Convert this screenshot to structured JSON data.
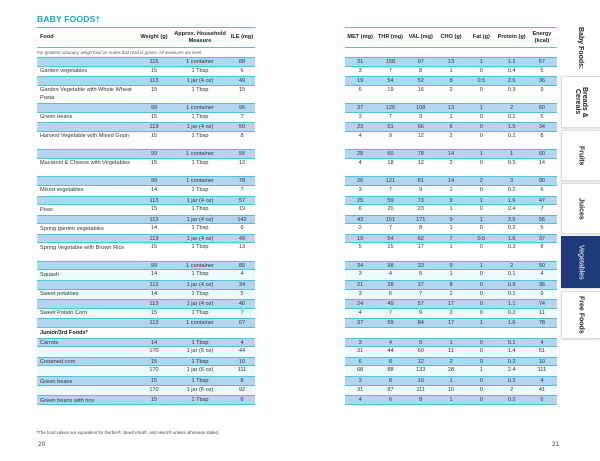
{
  "title": "BABY FOODS†",
  "note": "For greatest accuracy, weigh food on scales that read in grams. All measures are level.",
  "left_headers": [
    "Food",
    "Weight (g)",
    "Approx. Household Measure",
    "ILE (mg)"
  ],
  "right_headers": [
    "MET (mg)",
    "THR (mg)",
    "VAL (mg)",
    "CHO (g)",
    "Fat (g)",
    "Protein (g)",
    "Energy (kcal)"
  ],
  "rows": [
    [
      "",
      115,
      "1 container",
      88,
      31,
      158,
      97,
      13,
      1,
      1.1,
      57,
      "s"
    ],
    [
      "Garden vegetables",
      15,
      "1 Tbsp",
      6,
      3,
      7,
      8,
      1,
      0,
      0.4,
      5,
      ""
    ],
    [
      "",
      113,
      "1 jar (4 oz)",
      49,
      19,
      54,
      52,
      8,
      0.5,
      2.6,
      36,
      "s"
    ],
    [
      "Garden Vegetable with Whole Wheat Pasta",
      15,
      "1 Tbsp",
      15,
      6,
      19,
      16,
      2,
      0,
      0.3,
      9,
      "d"
    ],
    [
      "",
      99,
      "1 container",
      96,
      37,
      126,
      108,
      13,
      1,
      2,
      60,
      "s"
    ],
    [
      "Green beans",
      15,
      "1 Tbsp",
      7,
      3,
      7,
      9,
      1,
      0,
      0.2,
      5,
      ""
    ],
    [
      "",
      113,
      "1 jar (4 oz)",
      50,
      23,
      51,
      66,
      6,
      0,
      1.5,
      34,
      "s"
    ],
    [
      "Harvest Vegetable with Mixed Grain",
      15,
      "1 Tbsp",
      8,
      4,
      9,
      12,
      2,
      0,
      0.2,
      8,
      "d"
    ],
    [
      "",
      99,
      "1 container",
      55,
      28,
      60,
      78,
      14,
      1,
      1,
      60,
      "s"
    ],
    [
      "Macaroni & Cheese with Vegetables",
      15,
      "1 Tbsp",
      12,
      4,
      18,
      12,
      2,
      0,
      0.5,
      14,
      "d"
    ],
    [
      "",
      99,
      "1 container",
      78,
      26,
      121,
      81,
      14,
      2,
      3,
      90,
      "s"
    ],
    [
      "Mixed vegetables",
      14,
      "1 Tbsp",
      7,
      3,
      7,
      9,
      1,
      0,
      0.2,
      6,
      ""
    ],
    [
      "",
      113,
      "1 jar (4 oz)",
      57,
      25,
      59,
      73,
      9,
      1,
      1.6,
      47,
      "s"
    ],
    [
      "Peas",
      15,
      "1 Tbsp",
      19,
      6,
      20,
      23,
      1,
      0,
      0.4,
      7,
      ""
    ],
    [
      "",
      113,
      "1 jar (4 oz)",
      142,
      43,
      151,
      171,
      9,
      1,
      3.5,
      56,
      "s"
    ],
    [
      "Spring garden vegetables",
      14,
      "1 Tbsp",
      6,
      2,
      7,
      8,
      1,
      0,
      0.2,
      5,
      ""
    ],
    [
      "",
      113,
      "1 jar (4 oz)",
      49,
      19,
      54,
      62,
      7,
      0.5,
      1.6,
      37,
      "s"
    ],
    [
      "Spring Vegetable with Brown Rice",
      15,
      "1 Tbsp",
      13,
      5,
      15,
      17,
      1,
      0,
      0.3,
      8,
      "d"
    ],
    [
      "",
      99,
      "1 container",
      85,
      34,
      98,
      33,
      9,
      1,
      2,
      50,
      "s"
    ],
    [
      "Squash",
      14,
      "1 Tbsp",
      4,
      3,
      4,
      5,
      1,
      0,
      0.1,
      4,
      "bg"
    ],
    [
      "",
      113,
      "1 jar (4 oz)",
      34,
      21,
      28,
      37,
      8,
      0,
      0.9,
      36,
      "s"
    ],
    [
      "Sweet potatoes",
      14,
      "1 Tbsp",
      5,
      3,
      6,
      7,
      2,
      0,
      0.1,
      9,
      "bg"
    ],
    [
      "",
      113,
      "1 jar (4 oz)",
      40,
      24,
      49,
      57,
      17,
      0,
      1.1,
      74,
      "s"
    ],
    [
      "Sweet Potato Corn",
      15,
      "1 Tbsp",
      7,
      4,
      7,
      9,
      2,
      0,
      0.2,
      11,
      "bg"
    ],
    [
      "",
      113,
      "1 container",
      67,
      37,
      59,
      84,
      17,
      1,
      1.6,
      78,
      "s"
    ],
    [
      "Junior/3rd Foods*",
      "",
      "",
      "",
      "",
      "",
      "",
      "",
      "",
      "",
      "",
      "sec"
    ],
    [
      "Carrots",
      14,
      "1 Tbsp",
      4,
      3,
      4,
      5,
      1,
      0,
      0.1,
      4,
      "s"
    ],
    [
      "",
      170,
      "1 jar (6 oz)",
      44,
      31,
      44,
      60,
      11,
      0,
      1.4,
      51,
      "bg"
    ],
    [
      "Creamed corn",
      15,
      "1 Tbsp",
      10,
      6,
      8,
      12,
      2,
      0,
      0.2,
      10,
      "s"
    ],
    [
      "",
      170,
      "1 jar (6 oz)",
      111,
      68,
      88,
      133,
      28,
      1,
      2.4,
      111,
      "bg"
    ],
    [
      "Green beans",
      15,
      "1 Tbsp",
      8,
      3,
      8,
      10,
      1,
      0,
      0.2,
      4,
      "s"
    ],
    [
      "",
      170,
      "1 jar (6 oz)",
      92,
      31,
      87,
      111,
      10,
      0,
      2,
      41,
      "bg"
    ],
    [
      "Green beans with rice",
      15,
      "1 Tbsp",
      6,
      4,
      6,
      8,
      1,
      0,
      0.2,
      6,
      "s"
    ]
  ],
  "footnote": "†The food values are equivalent for Gerber®, Beech-Nut®, and Heinz® unless otherwise stated.",
  "page_left": "20",
  "page_right": "21",
  "tabs": [
    {
      "label": "Baby Foods:",
      "state": "plain"
    },
    {
      "label": "Breads & Cereals",
      "state": ""
    },
    {
      "label": "Fruits",
      "state": ""
    },
    {
      "label": "Juices",
      "state": ""
    },
    {
      "label": "Vegetables",
      "state": "active"
    },
    {
      "label": "Free Foods",
      "state": ""
    }
  ],
  "colors": {
    "accent": "#1ba3c6",
    "row_shade": "#b3d5f0",
    "active_tab": "#1f3a78"
  }
}
